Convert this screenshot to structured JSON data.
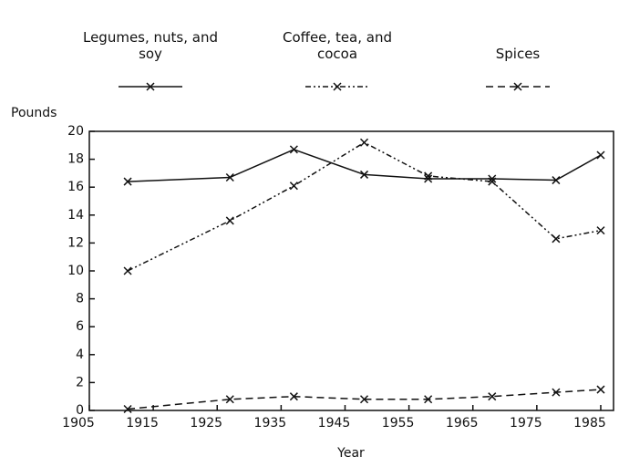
{
  "chart_data": {
    "type": "line",
    "x": [
      1911,
      1927,
      1937,
      1948,
      1958,
      1968,
      1978,
      1985
    ],
    "series": [
      {
        "name": "Legumes, nuts, and soy",
        "color": "#111111",
        "line_style": "solid",
        "values": [
          16.4,
          16.7,
          18.7,
          16.9,
          16.6,
          16.6,
          16.5,
          18.3
        ]
      },
      {
        "name": "Coffee, tea, and cocoa",
        "color": "#111111",
        "line_style": "dashdot",
        "values": [
          10.0,
          13.6,
          16.1,
          19.2,
          16.8,
          16.4,
          12.3,
          12.9
        ]
      },
      {
        "name": "Spices",
        "color": "#111111",
        "line_style": "dashed",
        "values": [
          0.1,
          0.8,
          1.0,
          0.8,
          0.8,
          1.0,
          1.3,
          1.5
        ]
      }
    ],
    "y_label": "Pounds",
    "x_label": "Year",
    "xlim": [
      1905,
      1987
    ],
    "xticks": [
      1905,
      1915,
      1925,
      1935,
      1945,
      1955,
      1965,
      1975,
      1985
    ],
    "ylim": [
      0,
      20
    ],
    "yticks": [
      0,
      2,
      4,
      6,
      8,
      10,
      12,
      14,
      16,
      18,
      20
    ],
    "legend": "top"
  }
}
